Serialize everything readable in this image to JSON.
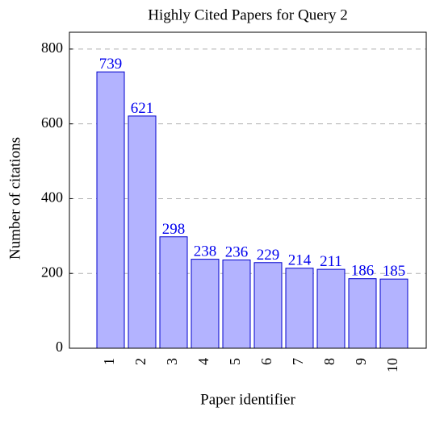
{
  "chart_data": {
    "type": "bar",
    "title": "Highly Cited Papers for Query 2",
    "x_label": "Paper identifier",
    "y_label": "Number of citations",
    "categories": [
      "1",
      "2",
      "3",
      "4",
      "5",
      "6",
      "7",
      "8",
      "9",
      "10"
    ],
    "values": [
      739,
      621,
      298,
      238,
      236,
      229,
      214,
      211,
      186,
      185
    ],
    "color": "#b3b3ff",
    "edge_color": "#0000cc",
    "label_color": "#0000ee",
    "ylim": [
      0,
      845
    ],
    "yticks": [
      0,
      200,
      400,
      600,
      800
    ],
    "grid": true
  }
}
